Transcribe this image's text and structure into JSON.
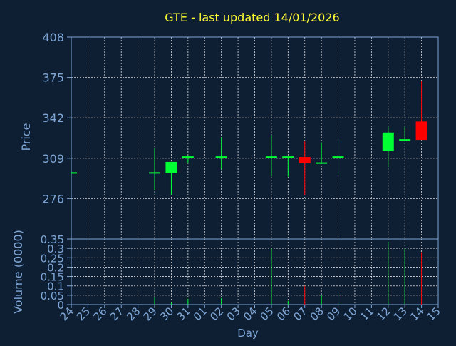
{
  "colors": {
    "background": "#0f1f33",
    "axis": "#7ea6d6",
    "grid": "#d8d8d8",
    "title": "#ffff33",
    "up": "#00ff33",
    "down": "#ff0000"
  },
  "chart_data": [
    {
      "type": "candlestick",
      "title": "GTE - last updated 14/01/2026",
      "ylabel": "Price",
      "ylim": [
        243,
        408
      ],
      "y_ticks": [
        "408",
        "375",
        "342",
        "309",
        "276"
      ],
      "grid": true,
      "categories": [
        "24",
        "25",
        "26",
        "27",
        "28",
        "29",
        "30",
        "31",
        "01",
        "02",
        "03",
        "04",
        "05",
        "06",
        "07",
        "08",
        "09",
        "10",
        "11",
        "12",
        "13",
        "14",
        "15"
      ],
      "candles": [
        {
          "day": "24",
          "open": 297,
          "close": 297,
          "high": 297,
          "low": 297
        },
        {
          "day": "29",
          "open": 297,
          "close": 297,
          "high": 317,
          "low": 283
        },
        {
          "day": "30",
          "open": 297,
          "close": 306,
          "high": 306,
          "low": 279
        },
        {
          "day": "31",
          "open": 310,
          "close": 310,
          "high": 311,
          "low": 305
        },
        {
          "day": "02",
          "open": 310,
          "close": 310,
          "high": 326,
          "low": 300
        },
        {
          "day": "05",
          "open": 310,
          "close": 310,
          "high": 328,
          "low": 294
        },
        {
          "day": "06",
          "open": 310,
          "close": 310,
          "high": 310,
          "low": 294
        },
        {
          "day": "07",
          "open": 310,
          "close": 305,
          "high": 323,
          "low": 279
        },
        {
          "day": "08",
          "open": 305,
          "close": 305,
          "high": 322,
          "low": 305
        },
        {
          "day": "09",
          "open": 310,
          "close": 310,
          "high": 325,
          "low": 294
        },
        {
          "day": "12",
          "open": 315,
          "close": 330,
          "high": 335,
          "low": 302
        },
        {
          "day": "13",
          "open": 324,
          "close": 324,
          "high": 335,
          "low": 324
        },
        {
          "day": "14",
          "open": 339,
          "close": 324,
          "high": 372,
          "low": 324
        }
      ]
    },
    {
      "type": "bar",
      "xlabel": "Day",
      "ylabel": "Volume (0000)",
      "ylim": [
        0,
        0.35
      ],
      "y_ticks": [
        "0.35",
        "0.3",
        "0.25",
        "0.2",
        "0.15",
        "0.1",
        "0.05",
        "0"
      ],
      "grid": true,
      "categories": [
        "24",
        "25",
        "26",
        "27",
        "28",
        "29",
        "30",
        "31",
        "01",
        "02",
        "03",
        "04",
        "05",
        "06",
        "07",
        "08",
        "09",
        "10",
        "11",
        "12",
        "13",
        "14",
        "15"
      ],
      "volumes": [
        {
          "day": "29",
          "value": 0.04,
          "direction": "up"
        },
        {
          "day": "30",
          "value": 0.01,
          "direction": "up"
        },
        {
          "day": "31",
          "value": 0.03,
          "direction": "up"
        },
        {
          "day": "02",
          "value": 0.035,
          "direction": "up"
        },
        {
          "day": "05",
          "value": 0.3,
          "direction": "up"
        },
        {
          "day": "06",
          "value": 0.02,
          "direction": "up"
        },
        {
          "day": "07",
          "value": 0.1,
          "direction": "down"
        },
        {
          "day": "08",
          "value": 0.05,
          "direction": "up"
        },
        {
          "day": "09",
          "value": 0.06,
          "direction": "up"
        },
        {
          "day": "12",
          "value": 0.335,
          "direction": "up"
        },
        {
          "day": "13",
          "value": 0.3,
          "direction": "up"
        },
        {
          "day": "14",
          "value": 0.28,
          "direction": "down"
        }
      ]
    }
  ]
}
